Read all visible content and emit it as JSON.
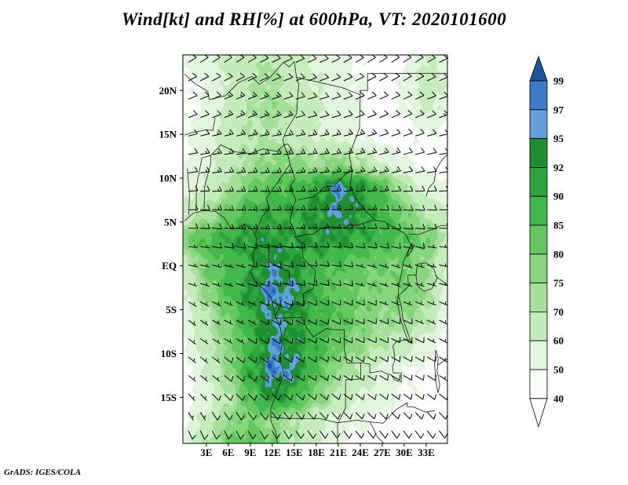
{
  "title": "Wind[kt] and RH[%] at 600hPa, VT: 2020101600",
  "footer": "GrADS: IGES/COLA",
  "chart_data": {
    "type": "heatmap",
    "title": "Wind[kt] and RH[%] at 600hPa, VT: 2020101600",
    "field": "Relative humidity [%] shaded, wind barbs [kt] overlaid",
    "x_ticks": {
      "labels": [
        "3E",
        "6E",
        "9E",
        "12E",
        "15E",
        "18E",
        "21E",
        "24E",
        "27E",
        "30E",
        "33E"
      ],
      "lons": [
        3,
        6,
        9,
        12,
        15,
        18,
        21,
        24,
        27,
        30,
        33
      ]
    },
    "y_ticks": {
      "labels": [
        "20N",
        "15N",
        "10N",
        "5N",
        "EQ",
        "5S",
        "10S",
        "15S"
      ],
      "lats": [
        20,
        15,
        10,
        5,
        0,
        -5,
        -10,
        -15
      ]
    },
    "lon_range": [
      -0.2,
      35.9
    ],
    "lat_range": [
      -20.25,
      24.05
    ],
    "colorbar": {
      "levels": [
        40,
        50,
        60,
        70,
        75,
        80,
        85,
        90,
        92,
        95,
        97,
        99
      ],
      "colors": [
        "#ffffff",
        "#fbfefa",
        "#e2f5dd",
        "#c6ecbd",
        "#a6e09b",
        "#87d57d",
        "#64c860",
        "#42b74c",
        "#2da53c",
        "#1f8f31",
        "#62a1dc",
        "#3a7cc9",
        "#1e55a0"
      ]
    },
    "rh_grid": {
      "lons": [
        0,
        3,
        6,
        9,
        12,
        15,
        18,
        21,
        24,
        27,
        30,
        33,
        36
      ],
      "lats": [
        24,
        21,
        18,
        15,
        12,
        9,
        6,
        3,
        0,
        -3,
        -6,
        -9,
        -12,
        -15,
        -18,
        -21
      ],
      "values": [
        [
          52,
          55,
          62,
          66,
          70,
          64,
          58,
          52,
          48,
          45,
          48,
          60,
          55
        ],
        [
          46,
          52,
          62,
          70,
          72,
          66,
          60,
          55,
          50,
          46,
          52,
          66,
          60
        ],
        [
          46,
          52,
          62,
          70,
          74,
          70,
          62,
          56,
          50,
          46,
          50,
          62,
          56
        ],
        [
          50,
          56,
          66,
          70,
          70,
          66,
          60,
          56,
          50,
          45,
          46,
          50,
          46
        ],
        [
          50,
          56,
          66,
          72,
          76,
          76,
          72,
          76,
          70,
          60,
          50,
          46,
          44
        ],
        [
          55,
          62,
          72,
          80,
          85,
          86,
          90,
          96,
          92,
          85,
          70,
          56,
          50
        ],
        [
          66,
          72,
          82,
          88,
          90,
          90,
          92,
          95,
          92,
          88,
          80,
          70,
          60
        ],
        [
          80,
          86,
          90,
          92,
          92,
          91,
          92,
          92,
          90,
          88,
          85,
          80,
          70
        ],
        [
          66,
          80,
          86,
          90,
          95,
          92,
          88,
          85,
          82,
          80,
          80,
          75,
          60
        ],
        [
          60,
          76,
          86,
          92,
          97,
          95,
          88,
          82,
          80,
          78,
          80,
          75,
          55
        ],
        [
          56,
          70,
          80,
          90,
          95,
          92,
          88,
          85,
          80,
          75,
          75,
          70,
          50
        ],
        [
          50,
          66,
          78,
          88,
          96,
          93,
          88,
          82,
          75,
          70,
          65,
          55,
          46
        ],
        [
          46,
          60,
          76,
          90,
          97,
          95,
          85,
          75,
          68,
          55,
          50,
          48,
          45
        ],
        [
          45,
          56,
          70,
          85,
          93,
          88,
          78,
          68,
          60,
          55,
          50,
          45,
          42
        ],
        [
          50,
          65,
          76,
          80,
          76,
          70,
          62,
          55,
          50,
          45,
          44,
          42,
          40
        ],
        [
          56,
          72,
          82,
          85,
          80,
          70,
          60,
          50,
          45,
          42,
          40,
          40,
          40
        ]
      ]
    },
    "wind_grid": {
      "lons": [
        0,
        6,
        12,
        18,
        24,
        30,
        36
      ],
      "lats": [
        24,
        18,
        12,
        6,
        0,
        -6,
        -12,
        -20
      ],
      "u": [
        [
          -8,
          -9,
          -10,
          -9,
          -8,
          -9,
          -10
        ],
        [
          -10,
          -12,
          -12,
          -11,
          -10,
          -11,
          -12
        ],
        [
          -12,
          -15,
          -16,
          -15,
          -14,
          -12,
          -12
        ],
        [
          -10,
          -14,
          -16,
          -15,
          -13,
          -11,
          -10
        ],
        [
          -5,
          -7,
          -8,
          -8,
          -7,
          -6,
          -6
        ],
        [
          -4,
          -6,
          -7,
          -8,
          -7,
          -7,
          -6
        ],
        [
          -5,
          -6,
          -8,
          -8,
          -8,
          -7,
          -6
        ],
        [
          -3,
          -4,
          -5,
          -6,
          -6,
          -5,
          -5
        ]
      ],
      "v": [
        [
          -5,
          -6,
          -5,
          -4,
          -5,
          -6,
          -5
        ],
        [
          -4,
          -5,
          -4,
          -3,
          -4,
          -5,
          -4
        ],
        [
          -2,
          -2,
          -1,
          -2,
          -3,
          -3,
          -2
        ],
        [
          0,
          1,
          1,
          0,
          0,
          1,
          0
        ],
        [
          1,
          2,
          2,
          1,
          2,
          2,
          1
        ],
        [
          3,
          3,
          4,
          4,
          3,
          3,
          3
        ],
        [
          4,
          5,
          6,
          5,
          5,
          4,
          4
        ],
        [
          7,
          8,
          9,
          9,
          8,
          7,
          7
        ]
      ]
    }
  }
}
